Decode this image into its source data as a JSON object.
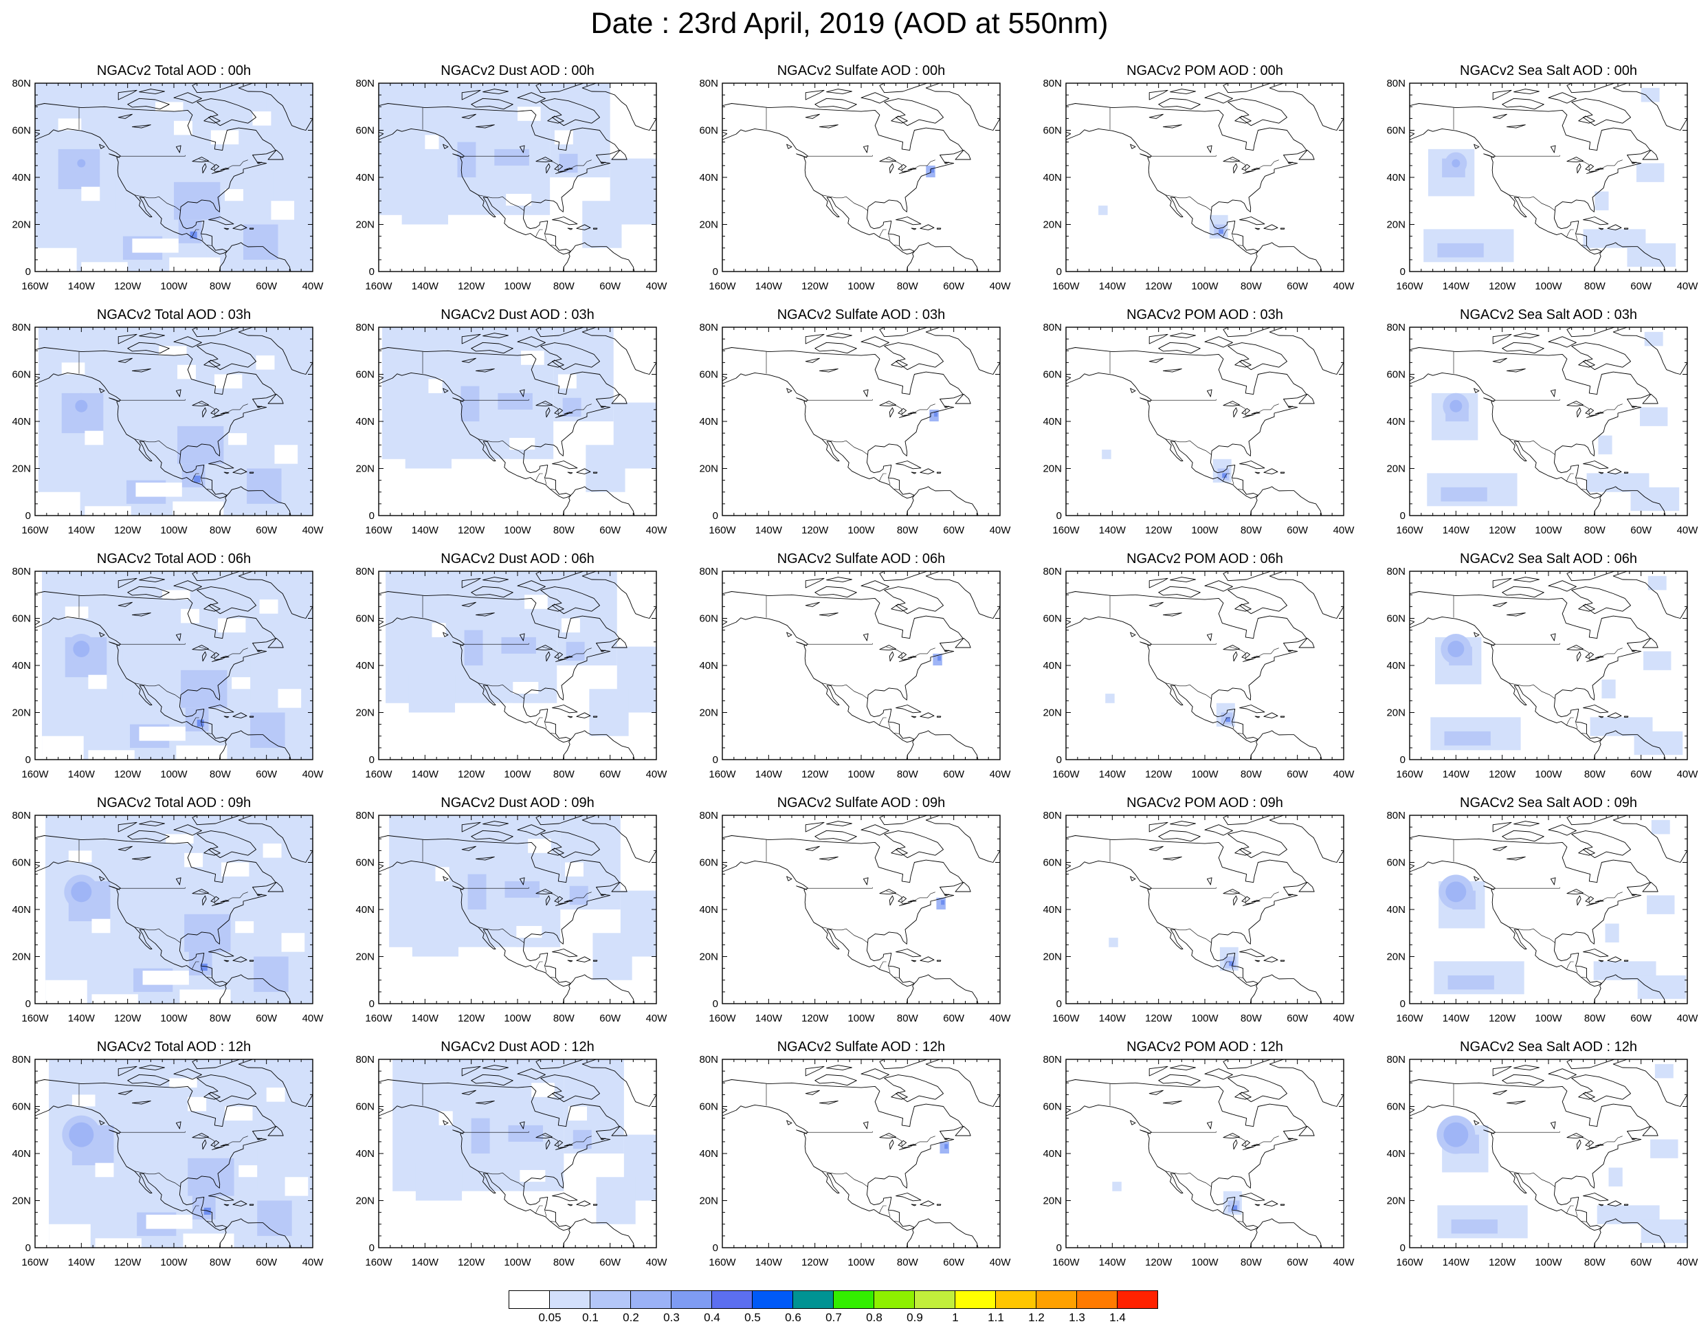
{
  "title": "Date : 23rd April, 2019 (AOD at 550nm)",
  "lat_labels": [
    "0",
    "20N",
    "40N",
    "60N",
    "80N"
  ],
  "lon_labels": [
    "160W",
    "140W",
    "120W",
    "100W",
    "80W",
    "60W",
    "40W"
  ],
  "colors": {
    "light": "#d3e0fb",
    "mid": "#b8c9f8",
    "deep": "#9fb5f6",
    "intense": "#6f8ff0",
    "core": "#2f5bea"
  },
  "colorbar": {
    "colors": [
      "#ffffff",
      "#d3e0fb",
      "#b4c7f8",
      "#9bb2f6",
      "#7f9cf3",
      "#5c6ff0",
      "#005af7",
      "#009393",
      "#33ee00",
      "#8ef000",
      "#c2ee3c",
      "#ffff00",
      "#ffc600",
      "#ffa100",
      "#ff7b00",
      "#ff2200"
    ],
    "labels": [
      "0.05",
      "0.1",
      "0.2",
      "0.3",
      "0.4",
      "0.5",
      "0.6",
      "0.7",
      "0.8",
      "0.9",
      "1",
      "1.1",
      "1.2",
      "1.3",
      "1.4"
    ]
  },
  "rows": [
    {
      "time": "00h",
      "panels": [
        {
          "title": "NGACv2 Total AOD : 00h",
          "kind": "total"
        },
        {
          "title": "NGACv2 Dust AOD : 00h",
          "kind": "dust"
        },
        {
          "title": "NGACv2 Sulfate AOD : 00h",
          "kind": "sulfate"
        },
        {
          "title": "NGACv2 POM AOD : 00h",
          "kind": "pom"
        },
        {
          "title": "NGACv2 Sea Salt AOD : 00h",
          "kind": "seasalt"
        }
      ]
    },
    {
      "time": "03h",
      "panels": [
        {
          "title": "NGACv2 Total AOD : 03h",
          "kind": "total"
        },
        {
          "title": "NGACv2 Dust AOD : 03h",
          "kind": "dust"
        },
        {
          "title": "NGACv2 Sulfate AOD : 03h",
          "kind": "sulfate"
        },
        {
          "title": "NGACv2 POM AOD : 03h",
          "kind": "pom"
        },
        {
          "title": "NGACv2 Sea Salt AOD : 03h",
          "kind": "seasalt"
        }
      ]
    },
    {
      "time": "06h",
      "panels": [
        {
          "title": "NGACv2 Total AOD : 06h",
          "kind": "total"
        },
        {
          "title": "NGACv2 Dust AOD : 06h",
          "kind": "dust"
        },
        {
          "title": "NGACv2 Sulfate AOD : 06h",
          "kind": "sulfate"
        },
        {
          "title": "NGACv2 POM AOD : 06h",
          "kind": "pom"
        },
        {
          "title": "NGACv2 Sea Salt AOD : 06h",
          "kind": "seasalt"
        }
      ]
    },
    {
      "time": "09h",
      "panels": [
        {
          "title": "NGACv2 Total AOD : 09h",
          "kind": "total"
        },
        {
          "title": "NGACv2 Dust AOD : 09h",
          "kind": "dust"
        },
        {
          "title": "NGACv2 Sulfate AOD : 09h",
          "kind": "sulfate"
        },
        {
          "title": "NGACv2 POM AOD : 09h",
          "kind": "pom"
        },
        {
          "title": "NGACv2 Sea Salt  AOD : 09h",
          "kind": "seasalt"
        }
      ]
    },
    {
      "time": "12h",
      "panels": [
        {
          "title": "NGACv2 Total AOD  : 12h",
          "kind": "total"
        },
        {
          "title": "NGACv2 Dust AOD : 12h",
          "kind": "dust"
        },
        {
          "title": "NGACv2 Sulfate AOD : 12h",
          "kind": "sulfate"
        },
        {
          "title": "NGACv2 POM  AOD : 12h",
          "kind": "pom"
        },
        {
          "title": "NGACv2 Sea Salt  AOD : 12h",
          "kind": "seasalt"
        }
      ]
    }
  ]
}
